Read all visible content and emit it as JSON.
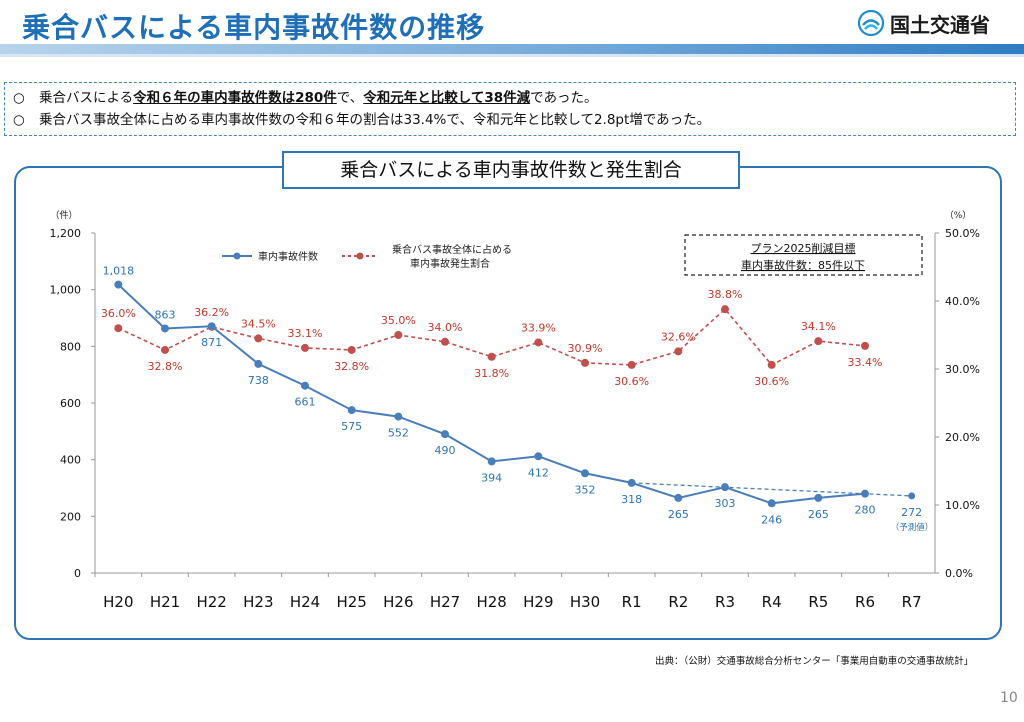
{
  "header": {
    "title": "乗合バスによる車内事故件数の推移",
    "logo_text": "国土交通省"
  },
  "summary": {
    "line1_pre": "乗合バスによる",
    "line1_b1": "令和６年の車内事故件数は280件",
    "line1_mid": "で、",
    "line1_b2": "令和元年と比較して38件減",
    "line1_post": "であった。",
    "line2": "乗合バス事故全体に占める車内事故件数の令和６年の割合は33.4%で、令和元年と比較して2.8pt増であった。",
    "bullet": "○"
  },
  "chart_title": "乗合バスによる車内事故件数と発生割合",
  "target_box": {
    "line1": "プラン2025削減目標",
    "line2": "車内事故件数：85件以下"
  },
  "footer": {
    "source": "出典：（公財）交通事故総合分析センター「事業用自動車の交通事故統計」",
    "page": "10"
  },
  "chart_data": {
    "type": "line",
    "categories": [
      "H20",
      "H21",
      "H22",
      "H23",
      "H24",
      "H25",
      "H26",
      "H27",
      "H28",
      "H29",
      "H30",
      "R1",
      "R2",
      "R3",
      "R4",
      "R5",
      "R6",
      "R7"
    ],
    "y_left": {
      "unit_label": "（件）",
      "range": [
        0,
        1200
      ],
      "ticks": [
        "0",
        "200",
        "400",
        "600",
        "800",
        "1,000",
        "1,200"
      ],
      "tick_values": [
        0,
        200,
        400,
        600,
        800,
        1000,
        1200
      ]
    },
    "y_right": {
      "unit_label": "（%）",
      "range": [
        0,
        50
      ],
      "ticks": [
        "0.0%",
        "10.0%",
        "20.0%",
        "30.0%",
        "40.0%",
        "50.0%"
      ],
      "tick_values": [
        0,
        10,
        20,
        30,
        40,
        50
      ]
    },
    "series": [
      {
        "name": "車内事故件数",
        "axis": "left",
        "color": "#4a7ebb",
        "label_color": "#2e74b5",
        "values": [
          1018,
          863,
          871,
          738,
          661,
          575,
          552,
          490,
          394,
          412,
          352,
          318,
          265,
          303,
          246,
          265,
          280,
          null
        ],
        "labels": [
          "1,018",
          "863",
          "871",
          "738",
          "661",
          "575",
          "552",
          "490",
          "394",
          "412",
          "352",
          "318",
          "265",
          "303",
          "246",
          "265",
          "280",
          ""
        ]
      },
      {
        "name": "乗合バス事故全体に占める車内事故発生割合",
        "name_line1": "乗合バス事故全体に占める",
        "name_line2": "車内事故発生割合",
        "axis": "right",
        "color": "#c0504d",
        "label_color": "#c0392b",
        "values": [
          36.0,
          32.8,
          36.2,
          34.5,
          33.1,
          32.8,
          35.0,
          34.0,
          31.8,
          33.9,
          30.9,
          30.6,
          32.6,
          38.8,
          30.6,
          34.1,
          33.4,
          null
        ],
        "labels": [
          "36.0%",
          "32.8%",
          "36.2%",
          "34.5%",
          "33.1%",
          "32.8%",
          "35.0%",
          "34.0%",
          "31.8%",
          "33.9%",
          "30.9%",
          "30.6%",
          "32.6%",
          "38.8%",
          "30.6%",
          "34.1%",
          "33.4%",
          ""
        ]
      }
    ],
    "trend": {
      "from_category": "R1",
      "from_value": 318,
      "to_category": "R7",
      "to_value": 272,
      "style": "dashed"
    },
    "forecast": {
      "category": "R7",
      "value": 272,
      "label": "272",
      "note": "（予測値）"
    }
  }
}
